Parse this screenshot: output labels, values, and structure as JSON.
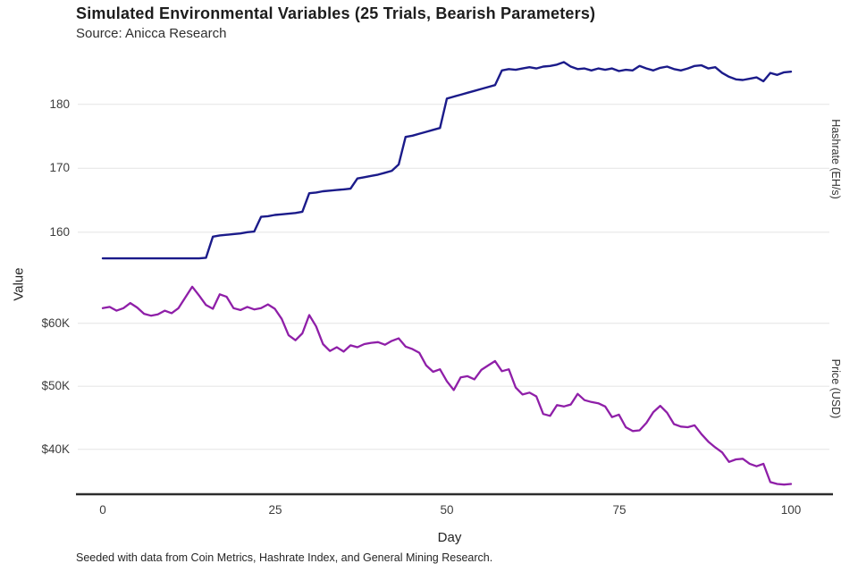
{
  "header": {
    "title": "Simulated Environmental Variables (25 Trials, Bearish Parameters)",
    "subtitle": "Source: Anicca Research"
  },
  "axes": {
    "x_label": "Day",
    "left_label": "Value"
  },
  "footer": {
    "note": "Seeded with data from Coin Metrics, Hashrate Index, and General Mining Research."
  },
  "chart_data": {
    "type": "line",
    "title": "Simulated Environmental Variables (25 Trials, Bearish Parameters)",
    "subtitle": "Source: Anicca Research",
    "xlabel": "Day",
    "ylabel": "Value",
    "footnote": "Seeded with data from Coin Metrics, Hashrate Index, and General Mining Research.",
    "grid": "horizontal-only",
    "legend_position": "none",
    "x_range": [
      0,
      100
    ],
    "x_ticks": [
      0,
      25,
      50,
      75,
      100
    ],
    "series": [
      {
        "name": "Hashrate (EH/s)",
        "color": "#1b1b8a",
        "unit": "EH/s",
        "x_step": 1,
        "axis": {
          "ticks": [
            180,
            170,
            160
          ],
          "tick_labels": [
            "180",
            "170",
            "160"
          ]
        },
        "values": [
          155.9,
          155.9,
          155.9,
          155.9,
          155.9,
          155.9,
          155.9,
          155.9,
          155.9,
          155.9,
          155.9,
          155.9,
          155.9,
          155.9,
          155.9,
          156.0,
          159.3,
          159.5,
          159.6,
          159.7,
          159.8,
          160.0,
          160.1,
          162.4,
          162.5,
          162.7,
          162.8,
          162.9,
          163.0,
          163.2,
          166.1,
          166.2,
          166.4,
          166.5,
          166.6,
          166.7,
          166.8,
          168.4,
          168.6,
          168.8,
          169.0,
          169.3,
          169.6,
          170.6,
          174.9,
          175.1,
          175.4,
          175.7,
          176.0,
          176.3,
          180.9,
          181.2,
          181.5,
          181.8,
          182.1,
          182.4,
          182.7,
          183.0,
          185.3,
          185.5,
          185.4,
          185.6,
          185.8,
          185.6,
          185.9,
          186.0,
          186.2,
          186.6,
          185.9,
          185.5,
          185.6,
          185.3,
          185.6,
          185.4,
          185.6,
          185.2,
          185.4,
          185.3,
          186.0,
          185.6,
          185.3,
          185.7,
          185.9,
          185.5,
          185.3,
          185.6,
          186.0,
          186.1,
          185.6,
          185.8,
          184.9,
          184.3,
          183.9,
          183.8,
          184.0,
          184.2,
          183.6,
          184.9,
          184.6,
          185.0,
          185.1
        ]
      },
      {
        "name": "Price (USD)",
        "color": "#8f1fa8",
        "unit": "USD (thousands)",
        "x_step": 1,
        "axis": {
          "ticks": [
            60,
            50,
            40
          ],
          "tick_labels": [
            "$60K",
            "$50K",
            "$40K"
          ]
        },
        "values": [
          62.4,
          62.6,
          62.0,
          62.4,
          63.2,
          62.5,
          61.5,
          61.2,
          61.4,
          62.0,
          61.6,
          62.4,
          64.1,
          65.8,
          64.4,
          62.9,
          62.3,
          64.6,
          64.2,
          62.4,
          62.1,
          62.6,
          62.2,
          62.4,
          63.0,
          62.3,
          60.7,
          58.1,
          57.3,
          58.4,
          61.3,
          59.5,
          56.7,
          55.6,
          56.2,
          55.5,
          56.5,
          56.2,
          56.7,
          56.9,
          57.0,
          56.6,
          57.2,
          57.6,
          56.3,
          55.9,
          55.3,
          53.3,
          52.3,
          52.7,
          50.8,
          49.4,
          51.4,
          51.6,
          51.1,
          52.6,
          53.3,
          54.0,
          52.4,
          52.7,
          49.8,
          48.7,
          49.0,
          48.4,
          45.6,
          45.3,
          47.0,
          46.8,
          47.1,
          48.8,
          47.8,
          47.5,
          47.3,
          46.8,
          45.1,
          45.5,
          43.5,
          42.9,
          43.0,
          44.2,
          45.9,
          46.9,
          45.8,
          44.0,
          43.6,
          43.5,
          43.8,
          42.4,
          41.2,
          40.3,
          39.5,
          38.0,
          38.4,
          38.5,
          37.7,
          37.3,
          37.7,
          34.8,
          34.5,
          34.4,
          34.5
        ]
      }
    ],
    "style": {
      "grid_color": "#e7e7e7",
      "axis_line_color": "#2d2d2d",
      "background": "#ffffff"
    }
  }
}
